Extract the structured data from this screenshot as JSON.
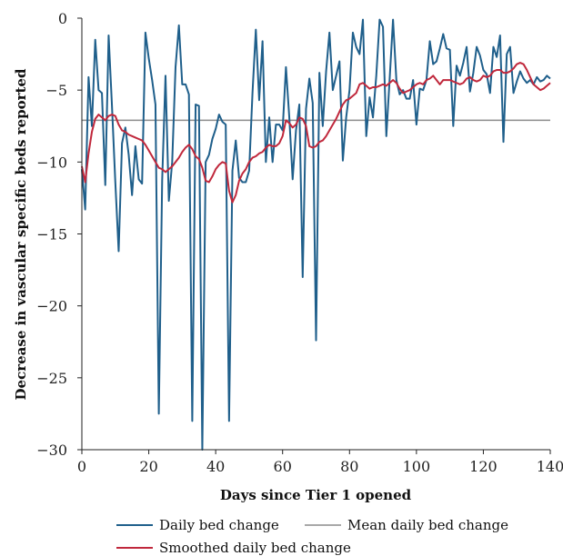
{
  "chart_data": {
    "type": "line",
    "xlabel": "Days since Tier 1 opened",
    "ylabel": "Decrease in vascular specific beds reported",
    "xlim": [
      0,
      140
    ],
    "ylim": [
      -30,
      0
    ],
    "xticks": [
      0,
      20,
      40,
      60,
      80,
      100,
      120,
      140
    ],
    "yticks": [
      0,
      -5,
      -10,
      -15,
      -20,
      -25,
      -30
    ],
    "legend_position": "bottom",
    "colors": {
      "daily": "#1f5f8b",
      "mean": "#8c8c8c",
      "smoothed": "#c0283c"
    },
    "series": [
      {
        "name": "Daily bed change",
        "x": [
          0,
          1,
          2,
          3,
          4,
          5,
          6,
          7,
          8,
          9,
          10,
          11,
          12,
          13,
          14,
          15,
          16,
          17,
          18,
          19,
          20,
          21,
          22,
          23,
          24,
          25,
          26,
          27,
          28,
          29,
          30,
          31,
          32,
          33,
          34,
          35,
          36,
          37,
          38,
          39,
          40,
          41,
          42,
          43,
          44,
          45,
          46,
          47,
          48,
          49,
          50,
          51,
          52,
          53,
          54,
          55,
          56,
          57,
          58,
          59,
          60,
          61,
          62,
          63,
          64,
          65,
          66,
          67,
          68,
          69,
          70,
          71,
          72,
          73,
          74,
          75,
          76,
          77,
          78,
          79,
          80,
          81,
          82,
          83,
          84,
          85,
          86,
          87,
          88,
          89,
          90,
          91,
          92,
          93,
          94,
          95,
          96,
          97,
          98,
          99,
          100,
          101,
          102,
          103,
          104,
          105,
          106,
          107,
          108,
          109,
          110,
          111,
          112,
          113,
          114,
          115,
          116,
          117,
          118,
          119,
          120,
          121,
          122,
          123,
          124,
          125,
          126,
          127,
          128,
          129,
          130,
          131,
          132,
          133,
          134,
          135,
          136,
          137,
          138,
          139,
          140
        ],
        "values": [
          -10.5,
          -13.3,
          -4.1,
          -7.5,
          -1.5,
          -5.0,
          -5.2,
          -11.6,
          -1.2,
          -6.1,
          -11.4,
          -16.2,
          -8.7,
          -7.6,
          -9.5,
          -12.3,
          -8.9,
          -11.2,
          -11.5,
          -1.0,
          -2.8,
          -4.3,
          -6.0,
          -27.5,
          -11.3,
          -4.0,
          -12.7,
          -10.0,
          -3.4,
          -0.5,
          -4.6,
          -4.6,
          -5.3,
          -28.0,
          -6.0,
          -6.1,
          -30.0,
          -10.0,
          -9.5,
          -8.4,
          -7.7,
          -6.7,
          -7.2,
          -7.4,
          -28.0,
          -10.6,
          -8.5,
          -11.1,
          -11.4,
          -11.4,
          -10.6,
          -5.2,
          -0.8,
          -5.7,
          -1.6,
          -10.0,
          -6.9,
          -10.0,
          -7.4,
          -7.4,
          -7.8,
          -3.4,
          -6.9,
          -11.2,
          -7.8,
          -6.0,
          -18.0,
          -6.3,
          -4.2,
          -5.9,
          -22.4,
          -3.8,
          -7.5,
          -3.7,
          -1.0,
          -5.0,
          -4.0,
          -3.0,
          -9.9,
          -6.9,
          -5.0,
          -1.0,
          -2.0,
          -2.5,
          -0.1,
          -8.2,
          -5.5,
          -6.9,
          -4.0,
          -0.1,
          -0.6,
          -8.2,
          -4.2,
          -0.1,
          -4.3,
          -5.3,
          -5.0,
          -5.6,
          -5.6,
          -4.3,
          -7.4,
          -4.9,
          -5.0,
          -4.3,
          -1.6,
          -3.2,
          -3.0,
          -2.1,
          -1.1,
          -2.1,
          -2.2,
          -7.5,
          -3.3,
          -4.0,
          -3.1,
          -2.0,
          -5.1,
          -3.8,
          -2.0,
          -2.6,
          -3.6,
          -3.9,
          -5.2,
          -2.0,
          -2.7,
          -1.2,
          -8.6,
          -2.5,
          -2.0,
          -5.2,
          -4.4,
          -3.7,
          -4.2,
          -4.5,
          -4.3,
          -4.6,
          -4.1,
          -4.4,
          -4.3,
          -4.0,
          -4.2
        ]
      },
      {
        "name": "Mean daily bed change",
        "x": [
          0,
          140
        ],
        "values": [
          -7.1,
          -7.1
        ]
      },
      {
        "name": "Smoothed daily bed change",
        "x": [
          0,
          1,
          2,
          3,
          4,
          5,
          6,
          7,
          8,
          9,
          10,
          11,
          12,
          13,
          14,
          15,
          16,
          17,
          18,
          19,
          20,
          21,
          22,
          23,
          24,
          25,
          26,
          27,
          28,
          29,
          30,
          31,
          32,
          33,
          34,
          35,
          36,
          37,
          38,
          39,
          40,
          41,
          42,
          43,
          44,
          45,
          46,
          47,
          48,
          49,
          50,
          51,
          52,
          53,
          54,
          55,
          56,
          57,
          58,
          59,
          60,
          61,
          62,
          63,
          64,
          65,
          66,
          67,
          68,
          69,
          70,
          71,
          72,
          73,
          74,
          75,
          76,
          77,
          78,
          79,
          80,
          81,
          82,
          83,
          84,
          85,
          86,
          87,
          88,
          89,
          90,
          91,
          92,
          93,
          94,
          95,
          96,
          97,
          98,
          99,
          100,
          101,
          102,
          103,
          104,
          105,
          106,
          107,
          108,
          109,
          110,
          111,
          112,
          113,
          114,
          115,
          116,
          117,
          118,
          119,
          120,
          121,
          122,
          123,
          124,
          125,
          126,
          127,
          128,
          129,
          130,
          131,
          132,
          133,
          134,
          135,
          136,
          137,
          138,
          139,
          140
        ],
        "values": [
          -10.3,
          -11.4,
          -9.4,
          -7.9,
          -7.0,
          -6.7,
          -6.9,
          -7.1,
          -6.8,
          -6.7,
          -6.8,
          -7.4,
          -7.8,
          -7.9,
          -8.1,
          -8.2,
          -8.3,
          -8.4,
          -8.5,
          -8.8,
          -9.2,
          -9.6,
          -10.0,
          -10.4,
          -10.5,
          -10.7,
          -10.5,
          -10.3,
          -10.0,
          -9.7,
          -9.3,
          -9.0,
          -8.8,
          -9.1,
          -9.6,
          -9.8,
          -10.4,
          -11.3,
          -11.4,
          -11.0,
          -10.5,
          -10.2,
          -10.0,
          -10.1,
          -12.0,
          -12.8,
          -12.3,
          -11.3,
          -10.8,
          -10.5,
          -10.0,
          -9.7,
          -9.6,
          -9.4,
          -9.3,
          -9.0,
          -8.8,
          -8.9,
          -8.9,
          -8.7,
          -8.2,
          -7.1,
          -7.3,
          -7.6,
          -7.4,
          -6.9,
          -7.0,
          -7.5,
          -8.9,
          -9.0,
          -8.9,
          -8.6,
          -8.5,
          -8.2,
          -7.8,
          -7.4,
          -7.0,
          -6.5,
          -6.0,
          -5.7,
          -5.6,
          -5.4,
          -5.2,
          -4.6,
          -4.5,
          -4.7,
          -4.9,
          -4.8,
          -4.8,
          -4.7,
          -4.6,
          -4.7,
          -4.5,
          -4.3,
          -4.5,
          -4.9,
          -5.2,
          -5.1,
          -5.0,
          -4.8,
          -4.6,
          -4.5,
          -4.6,
          -4.3,
          -4.2,
          -4.0,
          -4.3,
          -4.6,
          -4.3,
          -4.3,
          -4.3,
          -4.4,
          -4.5,
          -4.6,
          -4.5,
          -4.2,
          -4.1,
          -4.3,
          -4.4,
          -4.3,
          -4.0,
          -4.1,
          -4.0,
          -3.7,
          -3.6,
          -3.6,
          -3.8,
          -3.8,
          -3.7,
          -3.5,
          -3.2,
          -3.1,
          -3.2,
          -3.6,
          -4.1,
          -4.6,
          -4.8,
          -5.0,
          -4.9,
          -4.7,
          -4.5
        ]
      }
    ]
  }
}
